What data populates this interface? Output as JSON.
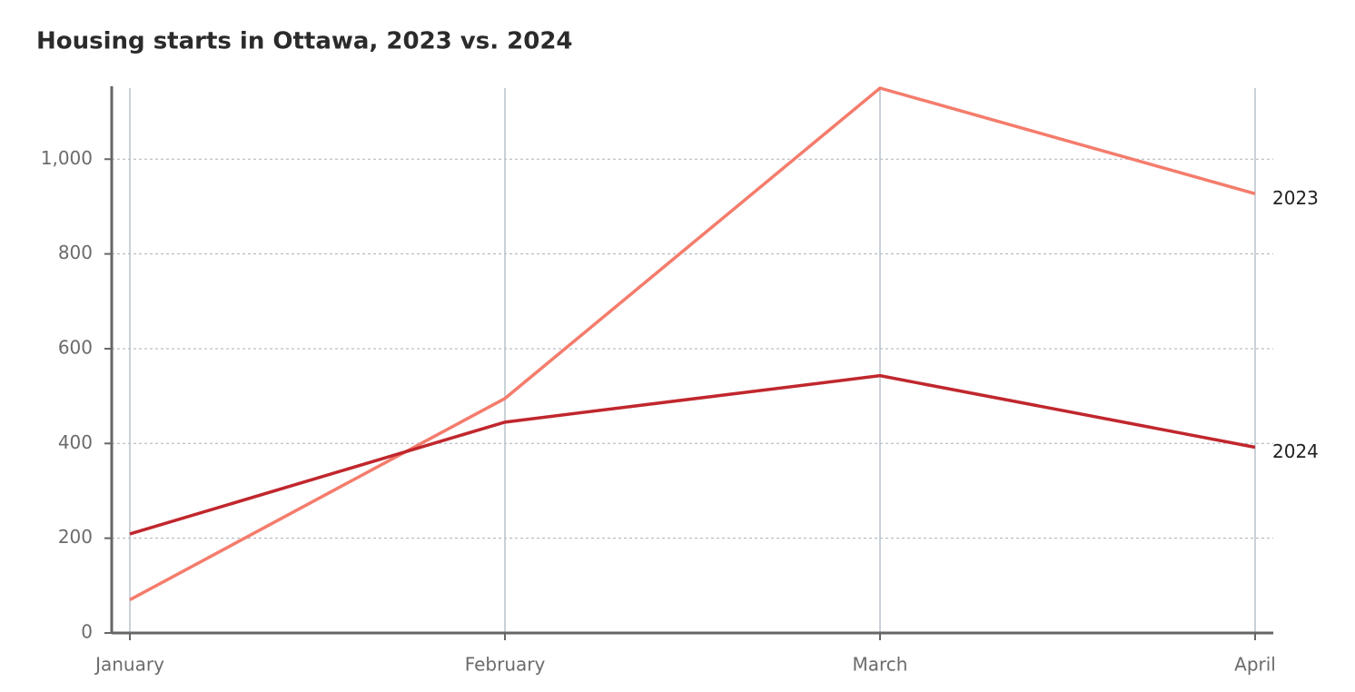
{
  "chart_data": {
    "type": "line",
    "title": "Housing starts in Ottawa, 2023 vs. 2024",
    "categories": [
      "January",
      "February",
      "March",
      "April"
    ],
    "series": [
      {
        "name": "2023",
        "color": "#f47c6c",
        "values": [
          70,
          495,
          1150,
          927
        ]
      },
      {
        "name": "2024",
        "color": "#c0272d",
        "values": [
          209,
          445,
          543,
          392
        ]
      }
    ],
    "ylim": [
      0,
      1150
    ],
    "yticks": [
      0,
      200,
      400,
      600,
      800,
      {
        "value": 1000,
        "label": "1,000"
      }
    ],
    "grid": true
  }
}
